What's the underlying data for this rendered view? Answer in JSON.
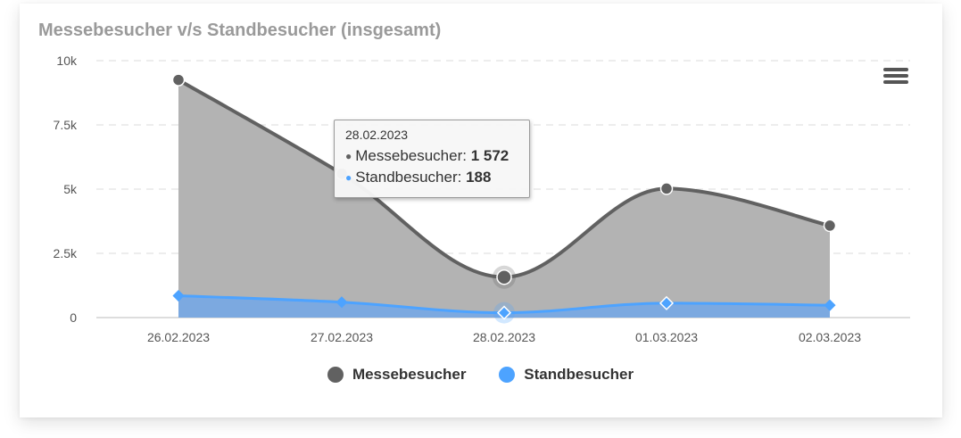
{
  "title": "Messebesucher v/s Standbesucher (insgesamt)",
  "chart_data": {
    "type": "area",
    "categories": [
      "26.02.2023",
      "27.02.2023",
      "28.02.2023",
      "01.03.2023",
      "02.03.2023"
    ],
    "series": [
      {
        "name": "Messebesucher",
        "values": [
          9250,
          5600,
          1572,
          5020,
          3580
        ],
        "color": "#616161",
        "fill": "#b3b3b3",
        "marker": "circle"
      },
      {
        "name": "Standbesucher",
        "values": [
          850,
          600,
          188,
          560,
          480
        ],
        "color": "#4da3ff",
        "fill": "#79a9e3",
        "marker": "diamond"
      }
    ],
    "y_ticks": [
      "0",
      "2.5k",
      "5k",
      "7.5k",
      "10k"
    ],
    "ylim": [
      0,
      10000
    ],
    "grid": true,
    "legend": "bottom-center"
  },
  "tooltip": {
    "date": "28.02.2023",
    "rows": [
      {
        "label": "Messebesucher: ",
        "value": "1 572",
        "color": "#616161"
      },
      {
        "label": "Standbesucher: ",
        "value": "188",
        "color": "#4da3ff"
      }
    ]
  },
  "menu_icon": "hamburger-icon"
}
